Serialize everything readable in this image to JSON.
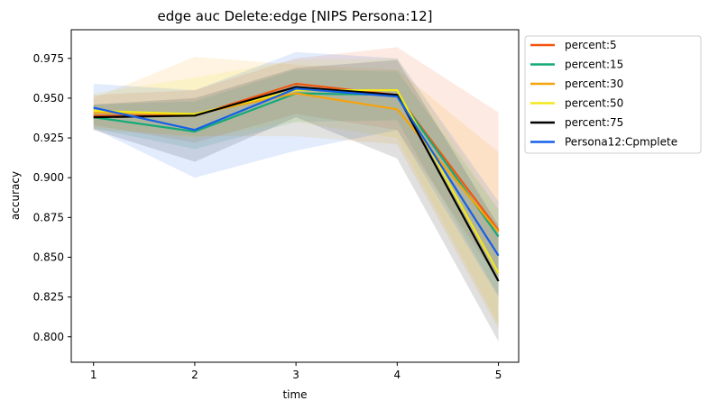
{
  "chart_data": {
    "type": "line",
    "title": "edge auc Delete:edge [NIPS Persona:12]",
    "xlabel": "time",
    "ylabel": "accuracy",
    "x": [
      1,
      2,
      3,
      4,
      5
    ],
    "x_ticks": [
      "1",
      "2",
      "3",
      "4",
      "5"
    ],
    "xlim": [
      0.78,
      5.2
    ],
    "ylim": [
      0.784,
      0.993
    ],
    "y_ticks": [
      0.8,
      0.825,
      0.85,
      0.875,
      0.9,
      0.925,
      0.95,
      0.975
    ],
    "y_tick_labels": [
      "0.800",
      "0.825",
      "0.850",
      "0.875",
      "0.900",
      "0.925",
      "0.950",
      "0.975"
    ],
    "grid": false,
    "legend_position": "outside-upper-right",
    "series": [
      {
        "name": "percent:5",
        "color": "#f2550f",
        "values": [
          0.939,
          0.939,
          0.959,
          0.952,
          0.867
        ],
        "lower": [
          0.933,
          0.922,
          0.94,
          0.93,
          0.835
        ],
        "upper": [
          0.952,
          0.955,
          0.975,
          0.982,
          0.941
        ]
      },
      {
        "name": "percent:15",
        "color": "#14aa78",
        "values": [
          0.938,
          0.929,
          0.953,
          0.952,
          0.863
        ],
        "lower": [
          0.931,
          0.918,
          0.935,
          0.936,
          0.826
        ],
        "upper": [
          0.946,
          0.948,
          0.968,
          0.967,
          0.88
        ]
      },
      {
        "name": "percent:30",
        "color": "#f5a30a",
        "values": [
          0.941,
          0.94,
          0.953,
          0.943,
          0.866
        ],
        "lower": [
          0.93,
          0.926,
          0.926,
          0.921,
          0.805
        ],
        "upper": [
          0.95,
          0.976,
          0.971,
          0.968,
          0.916
        ]
      },
      {
        "name": "percent:50",
        "color": "#f2e81a",
        "values": [
          0.942,
          0.94,
          0.955,
          0.955,
          0.84
        ],
        "lower": [
          0.932,
          0.925,
          0.935,
          0.925,
          0.808
        ],
        "upper": [
          0.953,
          0.963,
          0.974,
          0.975,
          0.88
        ]
      },
      {
        "name": "percent:75",
        "color": "#000000",
        "values": [
          0.938,
          0.939,
          0.957,
          0.952,
          0.835
        ],
        "lower": [
          0.93,
          0.91,
          0.938,
          0.912,
          0.797
        ],
        "upper": [
          0.946,
          0.95,
          0.969,
          0.974,
          0.87
        ]
      },
      {
        "name": "Persona12:Cpmplete",
        "color": "#1560e6",
        "values": [
          0.944,
          0.93,
          0.956,
          0.951,
          0.851
        ],
        "lower": [
          0.931,
          0.9,
          0.917,
          0.93,
          0.825
        ],
        "upper": [
          0.959,
          0.955,
          0.979,
          0.975,
          0.885
        ]
      }
    ]
  }
}
